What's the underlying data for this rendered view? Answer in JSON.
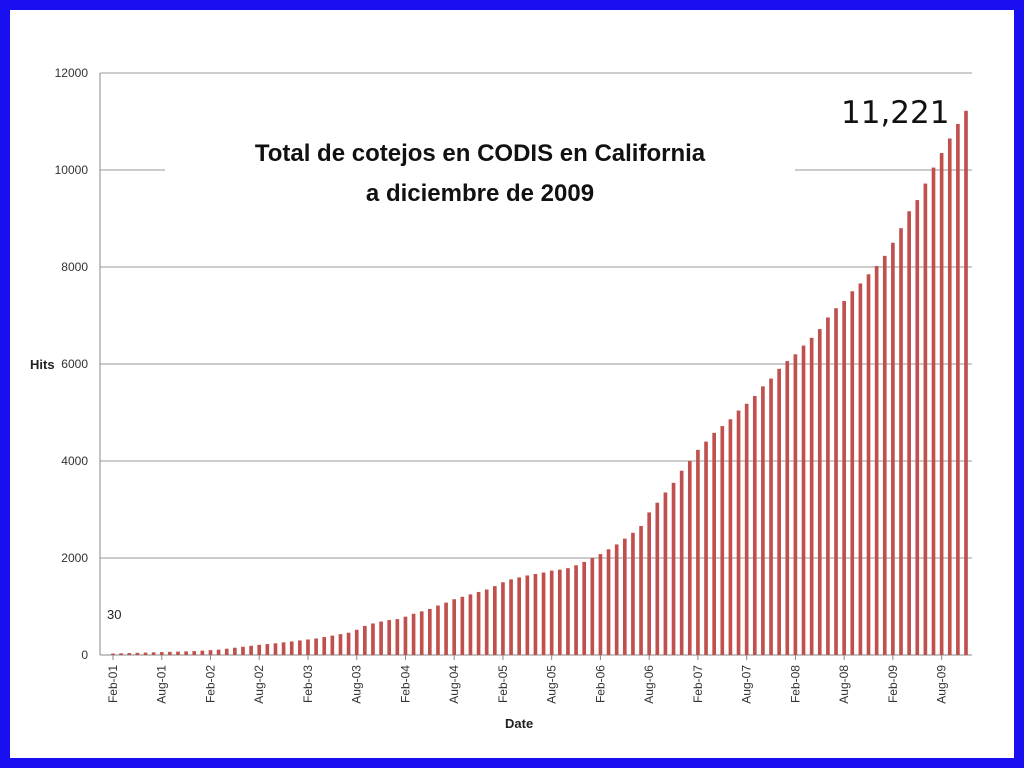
{
  "chart_data": {
    "type": "bar",
    "title_lines": [
      "Total de cotejos en CODIS en California",
      "a diciembre de 2009"
    ],
    "xlabel": "Date",
    "ylabel": "Hits",
    "ylim": [
      0,
      12000
    ],
    "yticks": [
      "0",
      "2000",
      "4000",
      "6000",
      "8000",
      "10000",
      "12000"
    ],
    "xticks": [
      "Feb-01",
      "Aug-01",
      "Feb-02",
      "Aug-02",
      "Feb-03",
      "Aug-03",
      "Feb-04",
      "Aug-04",
      "Feb-05",
      "Aug-05",
      "Feb-06",
      "Aug-06",
      "Feb-07",
      "Aug-07",
      "Feb-08",
      "Aug-08",
      "Feb-09",
      "Aug-09"
    ],
    "grid": true,
    "bar_color": "#c0504d",
    "annotations": {
      "start": "30",
      "end": "11,221"
    },
    "series": [
      {
        "values": [
          30,
          35,
          40,
          45,
          50,
          55,
          60,
          65,
          70,
          75,
          80,
          90,
          100,
          110,
          130,
          150,
          170,
          190,
          210,
          225,
          240,
          260,
          280,
          300,
          320,
          340,
          370,
          400,
          430,
          460,
          520,
          600,
          650,
          690,
          720,
          740,
          790,
          850,
          900,
          950,
          1020,
          1080,
          1150,
          1200,
          1250,
          1300,
          1350,
          1420,
          1500,
          1560,
          1600,
          1640,
          1670,
          1700,
          1740,
          1760,
          1790,
          1850,
          1920,
          2000,
          2080,
          2180,
          2280,
          2400,
          2520,
          2660,
          2940,
          3140,
          3350,
          3550,
          3800,
          4000,
          4230,
          4400,
          4580,
          4720,
          4860,
          5040,
          5180,
          5340,
          5540,
          5700,
          5900,
          6060,
          6200,
          6380,
          6540,
          6720,
          6960,
          7150,
          7300,
          7500,
          7660,
          7850,
          8020,
          8230,
          8500,
          8800,
          9150,
          9380,
          9720,
          10050,
          10350,
          10650,
          10950,
          11221
        ]
      }
    ]
  }
}
